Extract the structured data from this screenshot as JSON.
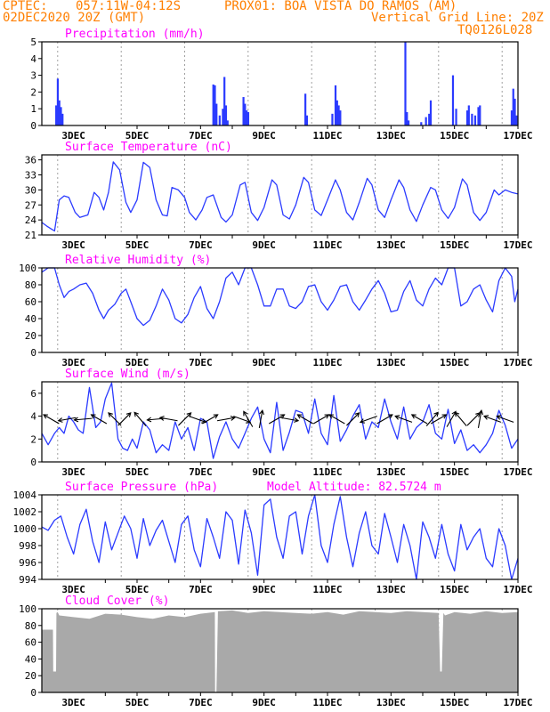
{
  "header": {
    "line1_left": "CPTEC:",
    "coords": "057:11W-04:12S",
    "station": "PROX01: BOA VISTA DO RAMOS (AM)",
    "date": "02DEC2020 20Z (GMT)",
    "grid_note": "Vertical Grid Line: 20Z",
    "run_code": "TQ0126L028"
  },
  "colors": {
    "header": "#ff7f00",
    "title": "#ff00ff",
    "series": "#2b3bff",
    "cloud": "#a9a9a9",
    "grid": "#888888",
    "vector": "#000000"
  },
  "chart_data": [
    {
      "type": "bar",
      "title": "Precipitation (mm/h)",
      "ylim": [
        0,
        5
      ],
      "yticks": [
        0,
        1,
        2,
        3,
        4,
        5
      ],
      "xticks": [
        "3DEC",
        "5DEC",
        "7DEC",
        "9DEC",
        "11DEC",
        "13DEC",
        "15DEC",
        "17DEC"
      ],
      "x_range_days": [
        0,
        15
      ],
      "bars": [
        [
          0.45,
          1.2
        ],
        [
          0.5,
          2.8
        ],
        [
          0.55,
          1.5
        ],
        [
          0.6,
          1.1
        ],
        [
          0.65,
          0.7
        ],
        [
          5.4,
          2.45
        ],
        [
          5.45,
          2.4
        ],
        [
          5.5,
          1.3
        ],
        [
          5.6,
          0.6
        ],
        [
          5.7,
          1.0
        ],
        [
          5.75,
          2.9
        ],
        [
          5.8,
          1.2
        ],
        [
          5.85,
          0.3
        ],
        [
          6.35,
          1.7
        ],
        [
          6.4,
          1.3
        ],
        [
          6.45,
          0.9
        ],
        [
          6.5,
          0.8
        ],
        [
          8.3,
          1.9
        ],
        [
          8.35,
          0.6
        ],
        [
          9.15,
          0.7
        ],
        [
          9.25,
          2.4
        ],
        [
          9.3,
          1.5
        ],
        [
          9.35,
          1.2
        ],
        [
          9.4,
          0.9
        ],
        [
          11.45,
          5.0
        ],
        [
          11.5,
          0.8
        ],
        [
          11.55,
          0.3
        ],
        [
          11.95,
          0.2
        ],
        [
          12.1,
          0.5
        ],
        [
          12.2,
          0.7
        ],
        [
          12.25,
          1.5
        ],
        [
          12.95,
          3.0
        ],
        [
          13.05,
          1.0
        ],
        [
          13.4,
          0.9
        ],
        [
          13.45,
          1.2
        ],
        [
          13.55,
          0.7
        ],
        [
          13.65,
          0.6
        ],
        [
          13.75,
          1.1
        ],
        [
          13.8,
          1.2
        ],
        [
          14.8,
          0.9
        ],
        [
          14.85,
          2.2
        ],
        [
          14.9,
          1.6
        ],
        [
          14.95,
          0.6
        ]
      ]
    },
    {
      "type": "line",
      "title": "Surface Temperature (nC)",
      "ylim": [
        21,
        37
      ],
      "yticks": [
        21,
        24,
        27,
        30,
        33,
        36
      ],
      "xticks": [
        "3DEC",
        "5DEC",
        "7DEC",
        "9DEC",
        "11DEC",
        "13DEC",
        "15DEC",
        "17DEC"
      ],
      "x": [
        0,
        0.15,
        0.3,
        0.4,
        0.55,
        0.7,
        0.85,
        1.05,
        1.2,
        1.45,
        1.65,
        1.8,
        1.95,
        2.1,
        2.25,
        2.45,
        2.65,
        2.8,
        3.0,
        3.2,
        3.4,
        3.6,
        3.8,
        3.95,
        4.1,
        4.3,
        4.5,
        4.65,
        4.85,
        5.05,
        5.2,
        5.4,
        5.65,
        5.8,
        6.0,
        6.25,
        6.4,
        6.6,
        6.8,
        7.0,
        7.25,
        7.4,
        7.6,
        7.8,
        8.0,
        8.25,
        8.4,
        8.6,
        8.8,
        9.0,
        9.25,
        9.4,
        9.6,
        9.8,
        10.0,
        10.25,
        10.4,
        10.6,
        10.8,
        11.0,
        11.25,
        11.4,
        11.6,
        11.8,
        12.0,
        12.25,
        12.4,
        12.6,
        12.8,
        13.0,
        13.25,
        13.4,
        13.6,
        13.8,
        14.0,
        14.25,
        14.4,
        14.6,
        14.8,
        15.0
      ],
      "y": [
        23.5,
        22.8,
        22.2,
        21.8,
        28.0,
        28.8,
        28.5,
        25.5,
        24.5,
        25.0,
        29.5,
        28.5,
        26.0,
        29.5,
        35.6,
        34.0,
        27.5,
        25.5,
        28.0,
        35.5,
        34.5,
        28.0,
        25.0,
        24.8,
        30.5,
        30.0,
        28.5,
        25.5,
        24.0,
        26.0,
        28.5,
        29.0,
        24.5,
        23.6,
        25.0,
        31.0,
        31.5,
        25.5,
        23.9,
        26.5,
        32.0,
        31.0,
        25.0,
        24.2,
        27.0,
        32.5,
        31.5,
        26.0,
        24.9,
        28.0,
        32.0,
        30.0,
        25.5,
        24.0,
        27.5,
        32.3,
        31.0,
        26.0,
        24.5,
        28.0,
        32.0,
        30.5,
        26.0,
        23.7,
        27.0,
        30.5,
        30.0,
        26.0,
        24.3,
        26.5,
        32.2,
        31.0,
        25.5,
        23.9,
        25.5,
        30.0,
        29.0,
        30.0,
        29.5,
        29.2
      ]
    },
    {
      "type": "line",
      "title": "Relative Humidity (%)",
      "ylim": [
        0,
        100
      ],
      "yticks": [
        0,
        20,
        40,
        60,
        80,
        100
      ],
      "xticks": [
        "3DEC",
        "5DEC",
        "7DEC",
        "9DEC",
        "11DEC",
        "13DEC",
        "15DEC",
        "17DEC"
      ],
      "x": [
        0,
        0.2,
        0.4,
        0.55,
        0.7,
        0.85,
        1.0,
        1.2,
        1.4,
        1.6,
        1.8,
        1.95,
        2.1,
        2.3,
        2.5,
        2.65,
        2.8,
        3.0,
        3.2,
        3.4,
        3.6,
        3.8,
        4.0,
        4.2,
        4.4,
        4.6,
        4.8,
        5.0,
        5.2,
        5.4,
        5.6,
        5.8,
        6.0,
        6.2,
        6.4,
        6.6,
        6.8,
        7.0,
        7.2,
        7.4,
        7.6,
        7.8,
        8.0,
        8.2,
        8.4,
        8.6,
        8.8,
        9.0,
        9.2,
        9.4,
        9.6,
        9.8,
        10.0,
        10.2,
        10.4,
        10.6,
        10.8,
        11.0,
        11.2,
        11.4,
        11.6,
        11.8,
        12.0,
        12.2,
        12.4,
        12.6,
        12.8,
        13.0,
        13.2,
        13.4,
        13.6,
        13.8,
        14.0,
        14.2,
        14.4,
        14.6,
        14.8,
        14.9,
        15.0
      ],
      "y": [
        95,
        100,
        100,
        80,
        65,
        72,
        75,
        80,
        82,
        70,
        50,
        40,
        50,
        57,
        70,
        75,
        60,
        40,
        32,
        38,
        55,
        75,
        62,
        40,
        35,
        45,
        65,
        78,
        52,
        40,
        60,
        88,
        95,
        80,
        100,
        100,
        80,
        55,
        55,
        75,
        75,
        55,
        52,
        60,
        78,
        80,
        60,
        50,
        62,
        78,
        80,
        60,
        50,
        62,
        75,
        85,
        70,
        48,
        50,
        72,
        85,
        62,
        55,
        75,
        88,
        80,
        100,
        100,
        55,
        60,
        75,
        80,
        62,
        48,
        85,
        100,
        90,
        60,
        75
      ]
    },
    {
      "type": "line",
      "title": "Surface Wind (m/s)",
      "ylim": [
        0,
        7
      ],
      "yticks": [
        0,
        2,
        4,
        6
      ],
      "xticks": [
        "3DEC",
        "5DEC",
        "7DEC",
        "9DEC",
        "11DEC",
        "13DEC",
        "15DEC",
        "17DEC"
      ],
      "x": [
        0,
        0.2,
        0.4,
        0.55,
        0.7,
        0.85,
        1.0,
        1.15,
        1.3,
        1.5,
        1.7,
        1.85,
        2.0,
        2.2,
        2.4,
        2.55,
        2.7,
        2.85,
        3.0,
        3.2,
        3.4,
        3.6,
        3.8,
        4.0,
        4.2,
        4.4,
        4.6,
        4.8,
        5.0,
        5.2,
        5.4,
        5.6,
        5.8,
        6.0,
        6.2,
        6.4,
        6.6,
        6.8,
        7.0,
        7.2,
        7.4,
        7.6,
        7.8,
        8.0,
        8.2,
        8.4,
        8.6,
        8.8,
        9.0,
        9.2,
        9.4,
        9.6,
        9.8,
        10.0,
        10.2,
        10.4,
        10.6,
        10.8,
        11.0,
        11.2,
        11.4,
        11.6,
        11.8,
        12.0,
        12.2,
        12.4,
        12.6,
        12.8,
        13.0,
        13.2,
        13.4,
        13.6,
        13.8,
        14.0,
        14.2,
        14.4,
        14.6,
        14.8,
        15.0
      ],
      "y": [
        2.5,
        1.5,
        2.5,
        3.0,
        2.5,
        4.0,
        3.5,
        2.8,
        2.5,
        6.5,
        3.0,
        3.5,
        5.5,
        6.9,
        2.0,
        1.2,
        1.0,
        2.0,
        1.2,
        3.5,
        2.8,
        0.8,
        1.5,
        1.0,
        3.5,
        2.0,
        3.0,
        1.0,
        3.8,
        3.5,
        0.3,
        2.2,
        3.5,
        2.0,
        1.2,
        2.5,
        3.8,
        4.8,
        2.0,
        0.8,
        5.2,
        1.0,
        2.6,
        4.5,
        4.3,
        2.5,
        5.5,
        2.5,
        1.5,
        5.8,
        1.8,
        2.8,
        4.0,
        5.0,
        2.0,
        3.5,
        3.0,
        5.5,
        3.5,
        2.0,
        4.8,
        2.0,
        3.0,
        3.5,
        5.0,
        2.5,
        2.0,
        4.6,
        1.6,
        2.8,
        1.0,
        1.5,
        0.8,
        1.5,
        2.5,
        4.5,
        3.2,
        1.2,
        2.0
      ]
    },
    {
      "type": "line",
      "title": "Surface Pressure (hPa)",
      "annotation": "Model Altitude: 82.5724 m",
      "ylim": [
        994,
        1004
      ],
      "yticks": [
        994,
        996,
        998,
        1000,
        1002,
        1004
      ],
      "xticks": [
        "3DEC",
        "5DEC",
        "7DEC",
        "9DEC",
        "11DEC",
        "13DEC",
        "15DEC",
        "17DEC"
      ],
      "x": [
        0,
        0.2,
        0.4,
        0.6,
        0.8,
        1.0,
        1.2,
        1.4,
        1.6,
        1.8,
        2.0,
        2.2,
        2.4,
        2.6,
        2.8,
        3.0,
        3.2,
        3.4,
        3.6,
        3.8,
        4.0,
        4.2,
        4.4,
        4.6,
        4.8,
        5.0,
        5.2,
        5.4,
        5.6,
        5.8,
        6.0,
        6.2,
        6.4,
        6.6,
        6.8,
        7.0,
        7.2,
        7.4,
        7.6,
        7.8,
        8.0,
        8.2,
        8.4,
        8.6,
        8.8,
        9.0,
        9.2,
        9.4,
        9.6,
        9.8,
        10.0,
        10.2,
        10.4,
        10.6,
        10.8,
        11.0,
        11.2,
        11.4,
        11.6,
        11.8,
        12.0,
        12.2,
        12.4,
        12.6,
        12.8,
        13.0,
        13.2,
        13.4,
        13.6,
        13.8,
        14.0,
        14.2,
        14.4,
        14.6,
        14.8,
        15.0
      ],
      "y": [
        1000.2,
        999.8,
        1001.0,
        1001.5,
        999.0,
        997.0,
        1000.5,
        1002.3,
        998.5,
        996.0,
        1000.8,
        997.5,
        999.5,
        1001.5,
        1000.0,
        996.5,
        1001.2,
        998.0,
        999.8,
        1001.0,
        998.5,
        996.0,
        1000.5,
        1001.5,
        997.5,
        995.5,
        1001.2,
        999.0,
        996.5,
        1002.0,
        1001.0,
        995.8,
        1002.2,
        999.5,
        994.5,
        1002.8,
        1003.5,
        999.0,
        996.5,
        1001.5,
        1002.0,
        997.0,
        1001.5,
        1004.0,
        998.0,
        996.0,
        1000.5,
        1003.8,
        999.0,
        995.5,
        999.5,
        1002.0,
        998.0,
        997.0,
        1001.8,
        999.0,
        996.0,
        1000.5,
        998.0,
        994.0,
        1000.8,
        999.0,
        996.5,
        1000.5,
        997.0,
        995.0,
        1000.5,
        997.5,
        999.0,
        1000.0,
        996.5,
        995.5,
        1000.0,
        998.0,
        994.0,
        996.5
      ]
    },
    {
      "type": "area",
      "title": "Cloud Cover (%)",
      "ylim": [
        0,
        100
      ],
      "yticks": [
        0,
        20,
        40,
        60,
        80,
        100
      ],
      "xticks": [
        "3DEC",
        "5DEC",
        "7DEC",
        "9DEC",
        "11DEC",
        "13DEC",
        "15DEC",
        "17DEC"
      ],
      "x": [
        0,
        0.35,
        0.36,
        0.45,
        0.46,
        0.5,
        0.55,
        1.0,
        1.5,
        2.0,
        2.5,
        3.0,
        3.5,
        4.0,
        4.5,
        5.0,
        5.45,
        5.46,
        5.5,
        5.55,
        6.0,
        6.5,
        7.0,
        7.5,
        8.0,
        8.5,
        9.0,
        9.5,
        10.0,
        10.5,
        11.0,
        11.5,
        12.0,
        12.5,
        12.55,
        12.6,
        12.65,
        12.7,
        13.0,
        13.5,
        14.0,
        14.5,
        15.0
      ],
      "y": [
        75,
        75,
        25,
        25,
        95,
        96,
        92,
        90,
        88,
        94,
        93,
        90,
        88,
        92,
        90,
        94,
        96,
        0,
        0,
        97,
        98,
        95,
        97,
        96,
        95,
        94,
        96,
        93,
        97,
        96,
        95,
        97,
        96,
        95,
        25,
        25,
        95,
        92,
        96,
        94,
        97,
        95,
        96
      ]
    }
  ]
}
